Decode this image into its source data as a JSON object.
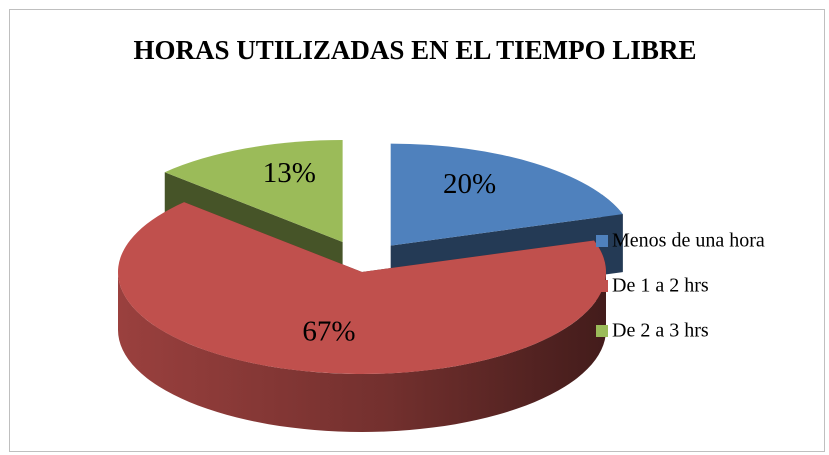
{
  "chart_data": {
    "type": "pie3d",
    "title": "HORAS UTILIZADAS EN EL TIEMPO LIBRE",
    "categories": [
      "Menos de una hora",
      "De 1 a 2 hrs",
      "De 2 a 3 hrs"
    ],
    "values": [
      20,
      67,
      13
    ],
    "value_labels": [
      "20%",
      "67%",
      "13%"
    ],
    "colors": [
      "#4f81bd",
      "#c0504d",
      "#9bbb59"
    ],
    "exploded": [
      true,
      false,
      true
    ],
    "legend": "right"
  }
}
